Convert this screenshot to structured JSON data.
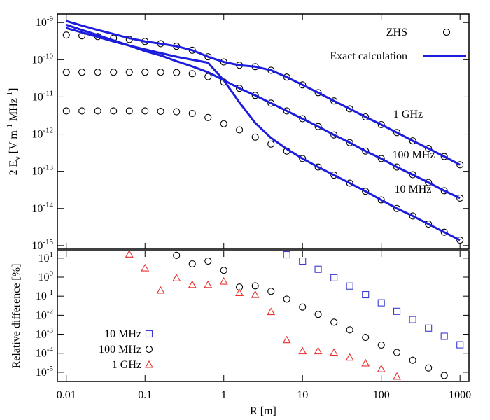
{
  "chart_data": [
    {
      "type": "line",
      "ylabel": [
        "2 E",
        "ν",
        " [V m",
        "-1",
        " MHz",
        "-1",
        "]"
      ],
      "log_x": true,
      "log_y": true,
      "x": [
        0.01,
        0.0158,
        0.0251,
        0.0398,
        0.0631,
        0.1,
        0.158,
        0.251,
        0.398,
        0.631,
        1,
        1.58,
        2.51,
        3.98,
        6.31,
        10,
        15.8,
        25.1,
        39.8,
        63.1,
        100,
        158,
        251,
        398,
        631,
        1000
      ],
      "xlim": [
        0.0077,
        1300
      ],
      "ylim": [
        8e-16,
        1.7e-09
      ],
      "yticks": [
        {
          "value": 1e-09,
          "label": "10",
          "exponent": "-9"
        },
        {
          "value": 1e-10,
          "label": "10",
          "exponent": "-10"
        },
        {
          "value": 1e-11,
          "label": "10",
          "exponent": "-11"
        },
        {
          "value": 1e-12,
          "label": "10",
          "exponent": "-12"
        },
        {
          "value": 1e-13,
          "label": "10",
          "exponent": "-13"
        },
        {
          "value": 1e-14,
          "label": "10",
          "exponent": "-14"
        },
        {
          "value": 1e-15,
          "label": "10",
          "exponent": "-15"
        }
      ],
      "series": [
        {
          "color": "#000000",
          "marker": "circle",
          "values": [
            4.6e-10,
            4.4e-10,
            4.2e-10,
            3.8e-10,
            3.5e-10,
            3.1e-10,
            2.7e-10,
            2.3e-10,
            1.8e-10,
            1.2e-10,
            8.7e-11,
            7.1e-11,
            6.5e-11,
            5.2e-11,
            3.4e-11,
            2.1e-11,
            1.3e-11,
            7.8e-12,
            4.8e-12,
            2.9e-12,
            1.8e-12,
            1.1e-12,
            6.6e-13,
            4.1e-13,
            2.5e-13,
            1.5e-13
          ]
        },
        {
          "color": "#000000",
          "marker": "circle",
          "values": [
            4.6e-11,
            4.6e-11,
            4.6e-11,
            4.6e-11,
            4.6e-11,
            4.6e-11,
            4.6e-11,
            4.5e-11,
            4.2e-11,
            3.5e-11,
            2.5e-11,
            1.7e-11,
            1.1e-11,
            6.8e-12,
            4.2e-12,
            2.6e-12,
            1.6e-12,
            9.5e-13,
            5.9e-13,
            3.5e-13,
            2.2e-13,
            1.3e-13,
            8.1e-14,
            5e-14,
            3e-14,
            1.9e-14
          ]
        },
        {
          "color": "#000000",
          "marker": "circle",
          "values": [
            4.2e-12,
            4.2e-12,
            4.2e-12,
            4.2e-12,
            4.2e-12,
            4.2e-12,
            4.1e-12,
            4e-12,
            3.6e-12,
            2.8e-12,
            1.9e-12,
            1.3e-12,
            8.3e-13,
            5.4e-13,
            3.5e-13,
            2.2e-13,
            1.3e-13,
            7.9e-14,
            4.8e-14,
            2.9e-14,
            1.7e-14,
            1e-14,
            6.3e-15,
            3.8e-15,
            2.3e-15,
            1.4e-15
          ]
        },
        {
          "color": "#1c1cdc",
          "marker": "line",
          "values": [
            1.1e-09,
            8.3e-10,
            6.3e-10,
            4.9e-10,
            3.8e-10,
            3.1e-10,
            2.7e-10,
            2.3e-10,
            1.8e-10,
            1.2e-10,
            8.7e-11,
            7.1e-11,
            6.5e-11,
            5.2e-11,
            3.4e-11,
            2.1e-11,
            1.3e-11,
            7.8e-12,
            4.8e-12,
            2.9e-12,
            1.8e-12,
            1.1e-12,
            6.6e-13,
            4.1e-13,
            2.5e-13,
            1.5e-13
          ]
        },
        {
          "color": "#1c1cdc",
          "marker": "line",
          "values": [
            8.7e-10,
            6.3e-10,
            4.6e-10,
            3.3e-10,
            2.4e-10,
            1.7e-10,
            1.3e-10,
            9.1e-11,
            6.6e-11,
            4.6e-11,
            2.8e-11,
            1.7e-11,
            1.1e-11,
            6.8e-12,
            4.2e-12,
            2.6e-12,
            1.6e-12,
            9.5e-13,
            5.9e-13,
            3.5e-13,
            2.2e-13,
            1.3e-13,
            8.1e-14,
            5e-14,
            3e-14,
            1.9e-14
          ]
        },
        {
          "color": "#1c1cdc",
          "marker": "line",
          "values": [
            7.1e-10,
            5.4e-10,
            4.1e-10,
            3.1e-10,
            2.4e-10,
            1.9e-10,
            1.5e-10,
            1.2e-10,
            1e-10,
            8.3e-11,
            2.8e-11,
            7.1e-12,
            2e-12,
            7.9e-13,
            4e-13,
            2.2e-13,
            1.3e-13,
            7.9e-14,
            4.8e-14,
            2.9e-14,
            1.7e-14,
            1e-14,
            6.3e-15,
            3.8e-15,
            2.3e-15,
            1.4e-15
          ]
        }
      ],
      "legend": [
        {
          "label": "ZHS",
          "marker": "circle",
          "color": "#000000"
        },
        {
          "label": "Exact calculation",
          "marker": "line",
          "color": "#1c1cdc"
        }
      ],
      "legend_position": "upper right",
      "annotations": [
        "1 GHz",
        "100 MHz",
        "10 MHz"
      ]
    },
    {
      "type": "scatter",
      "xlabel": "R [m]",
      "ylabel": "Relative difference [%]",
      "log_x": true,
      "log_y": true,
      "x": [
        0.01,
        0.0158,
        0.0251,
        0.0398,
        0.0631,
        0.1,
        0.158,
        0.251,
        0.398,
        0.631,
        1,
        1.58,
        2.51,
        3.98,
        6.31,
        10,
        15.8,
        25.1,
        39.8,
        63.1,
        100,
        158,
        251,
        398,
        631,
        1000
      ],
      "xlim": [
        0.0077,
        1300
      ],
      "ylim": [
        3.3e-06,
        25
      ],
      "xticks": [
        0.01,
        0.1,
        1,
        10,
        100,
        1000
      ],
      "yticks": [
        {
          "value": 10,
          "label": "10",
          "exponent": "1"
        },
        {
          "value": 1,
          "label": "10",
          "exponent": "0"
        },
        {
          "value": 0.1,
          "label": "10",
          "exponent": "-1"
        },
        {
          "value": 0.01,
          "label": "10",
          "exponent": "-2"
        },
        {
          "value": 0.001,
          "label": "10",
          "exponent": "-3"
        },
        {
          "value": 0.0001,
          "label": "10",
          "exponent": "-4"
        },
        {
          "value": 1e-05,
          "label": "10",
          "exponent": "-5"
        }
      ],
      "legend_position": "lower left",
      "series": [
        {
          "name": "10 MHz",
          "color": "#3a3ad0",
          "marker": "square",
          "values": [
            null,
            null,
            null,
            null,
            null,
            null,
            null,
            null,
            null,
            null,
            null,
            null,
            null,
            null,
            15,
            7,
            2.6,
            0.93,
            0.34,
            0.12,
            0.045,
            0.016,
            0.0059,
            0.0021,
            0.00078,
            0.00028
          ]
        },
        {
          "name": "100 MHz",
          "color": "#000000",
          "marker": "circle",
          "values": [
            null,
            null,
            null,
            null,
            null,
            null,
            null,
            14,
            5,
            7,
            2.3,
            0.3,
            0.35,
            0.18,
            0.07,
            0.027,
            0.011,
            0.0043,
            0.0017,
            0.00068,
            0.00027,
            0.00011,
            4.3e-05,
            1.7e-05,
            6.8e-06,
            null
          ]
        },
        {
          "name": "1 GHz",
          "color": "#e83030",
          "marker": "triangle",
          "values": [
            null,
            null,
            null,
            null,
            16,
            3,
            0.2,
            0.9,
            0.4,
            0.4,
            0.6,
            0.15,
            0.12,
            0.015,
            0.0005,
            0.00013,
            0.00013,
            0.00011,
            6e-05,
            3e-05,
            1.5e-05,
            6e-06,
            null,
            null,
            null,
            null
          ]
        }
      ]
    }
  ]
}
